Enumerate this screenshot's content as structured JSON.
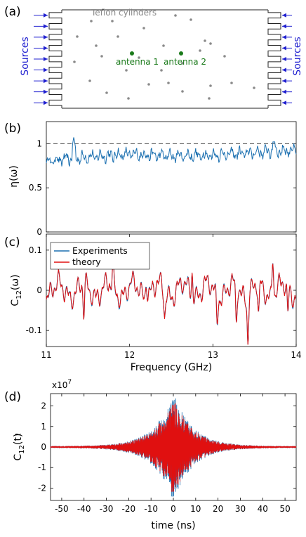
{
  "panels": {
    "a": {
      "label": "(a)",
      "teflon_label": "Teflon cylinders",
      "sources_left": "Sources",
      "sources_right": "Sources",
      "antenna1": "antenna 1",
      "antenna2": "antenna 2",
      "antenna_color": "#1a7a1a",
      "source_color": "#2020d0",
      "cylinder_color": "#8a8a8a",
      "cylinders": [
        [
          130,
          30
        ],
        [
          160,
          30
        ],
        [
          250,
          22
        ],
        [
          272,
          28
        ],
        [
          205,
          40
        ],
        [
          110,
          52
        ],
        [
          168,
          52
        ],
        [
          292,
          58
        ],
        [
          300,
          62
        ],
        [
          137,
          65
        ],
        [
          233,
          65
        ],
        [
          285,
          72
        ],
        [
          145,
          80
        ],
        [
          320,
          80
        ],
        [
          198,
          82
        ],
        [
          106,
          88
        ],
        [
          260,
          90
        ],
        [
          180,
          100
        ],
        [
          230,
          100
        ],
        [
          128,
          115
        ],
        [
          240,
          118
        ],
        [
          212,
          120
        ],
        [
          330,
          118
        ],
        [
          300,
          122
        ],
        [
          260,
          130
        ],
        [
          152,
          132
        ],
        [
          362,
          125
        ],
        [
          183,
          140
        ],
        [
          298,
          140
        ]
      ],
      "antenna_positions": [
        [
          188,
          76
        ],
        [
          258,
          76
        ]
      ]
    },
    "b": {
      "label": "(b)",
      "ylabel": "η(ω)",
      "yticks": [
        "0",
        "0.5",
        "1"
      ],
      "ytick_values": [
        0,
        0.5,
        1
      ],
      "ylim": [
        0,
        1.25
      ],
      "xlim": [
        11,
        14
      ],
      "reference": 1,
      "line_color": "#1a6fb0"
    },
    "c": {
      "label": "(c)",
      "ylabel_main": "C",
      "ylabel_sub": "12",
      "ylabel_tail": "(ω)",
      "yticks": [
        "-0.1",
        "0",
        "0.1"
      ],
      "ytick_values": [
        -0.1,
        0,
        0.1
      ],
      "ylim": [
        -0.14,
        0.14
      ],
      "xlim": [
        11,
        14
      ],
      "xticks": [
        "11",
        "12",
        "13",
        "14"
      ],
      "xtick_values": [
        11,
        12,
        13,
        14
      ],
      "xlabel": "Frequency (GHz)",
      "legend": [
        {
          "name": "Experiments",
          "color": "#1a6fb0"
        },
        {
          "name": "theory",
          "color": "#e01010"
        }
      ]
    },
    "d": {
      "label": "(d)",
      "scale_base": "x10",
      "scale_exp": "7",
      "ylabel_main": "C",
      "ylabel_tilde": "~",
      "ylabel_sub": "12",
      "ylabel_tail": "(t)",
      "yticks": [
        "-2",
        "-1",
        "0",
        "1",
        "2"
      ],
      "ytick_values": [
        -2,
        -1,
        0,
        1,
        2
      ],
      "ylim": [
        -2.6,
        2.6
      ],
      "xlim": [
        -55,
        55
      ],
      "xticks": [
        "-50",
        "-40",
        "-30",
        "-20",
        "-10",
        "0",
        "10",
        "20",
        "30",
        "40",
        "50"
      ],
      "xtick_values": [
        -50,
        -40,
        -30,
        -20,
        -10,
        0,
        10,
        20,
        30,
        40,
        50
      ],
      "xlabel": "time (ns)",
      "colors": [
        "#1a6fb0",
        "#e01010"
      ]
    }
  },
  "chart_data": [
    {
      "type": "line",
      "xlim": [
        11,
        14
      ],
      "ylim": [
        0,
        1.25
      ],
      "ylabel": "η(ω)",
      "reference_line": 1,
      "series": [
        {
          "name": "",
          "trend_x": [
            11,
            11.5,
            12,
            12.5,
            13,
            13.5,
            14
          ],
          "trend_y": [
            0.8,
            0.85,
            0.88,
            0.86,
            0.87,
            0.9,
            0.93
          ]
        }
      ]
    },
    {
      "type": "line",
      "xlim": [
        11,
        14
      ],
      "ylim": [
        -0.14,
        0.14
      ],
      "xlabel": "Frequency (GHz)",
      "ylabel": "C12(ω)",
      "series": [
        {
          "name": "Experiments"
        },
        {
          "name": "theory"
        }
      ]
    },
    {
      "type": "line",
      "xlim": [
        -55,
        55
      ],
      "ylim": [
        -2.6,
        2.6
      ],
      "xlabel": "time (ns)",
      "ylabel": "C̃12(t)",
      "envelope_peak": 2.5
    }
  ]
}
